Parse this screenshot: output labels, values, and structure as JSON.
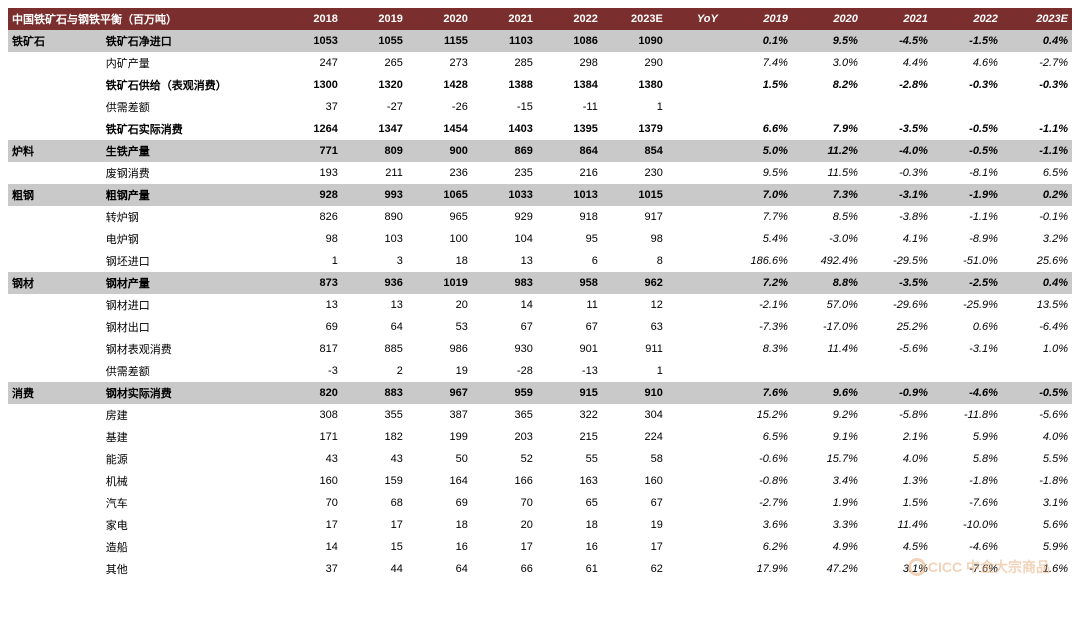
{
  "title": "中国铁矿石与钢铁平衡（百万吨）",
  "year_headers": [
    "2018",
    "2019",
    "2020",
    "2021",
    "2022",
    "2023E"
  ],
  "yoy_label": "YoY",
  "yoy_headers": [
    "2019",
    "2020",
    "2021",
    "2022",
    "2023E"
  ],
  "colors": {
    "header_bg": "#7a2e2e",
    "header_text": "#ffffff",
    "row_shade": "#c9c9c9",
    "row_plain": "#ffffff",
    "text": "#000000"
  },
  "font_sizes": {
    "body": 11,
    "header": 11
  },
  "watermark": {
    "text": "CICC 中金大宗商品",
    "color": "#e8b080"
  },
  "rows": [
    {
      "cat": "铁矿石",
      "label": "铁矿石净进口",
      "vals": [
        "1053",
        "1055",
        "1155",
        "1103",
        "1086",
        "1090"
      ],
      "yoy": [
        "0.1%",
        "9.5%",
        "-4.5%",
        "-1.5%",
        "0.4%"
      ],
      "bold": true,
      "shaded": true
    },
    {
      "cat": "",
      "label": "内矿产量",
      "vals": [
        "247",
        "265",
        "273",
        "285",
        "298",
        "290"
      ],
      "yoy": [
        "7.4%",
        "3.0%",
        "4.4%",
        "4.6%",
        "-2.7%"
      ],
      "bold": false,
      "shaded": false
    },
    {
      "cat": "",
      "label": "铁矿石供给（表观消费）",
      "vals": [
        "1300",
        "1320",
        "1428",
        "1388",
        "1384",
        "1380"
      ],
      "yoy": [
        "1.5%",
        "8.2%",
        "-2.8%",
        "-0.3%",
        "-0.3%"
      ],
      "bold": true,
      "shaded": false
    },
    {
      "cat": "",
      "label": "供需差额",
      "vals": [
        "37",
        "-27",
        "-26",
        "-15",
        "-11",
        "1"
      ],
      "yoy": [
        "",
        "",
        "",
        "",
        ""
      ],
      "bold": false,
      "shaded": false
    },
    {
      "cat": "",
      "label": "铁矿石实际消费",
      "vals": [
        "1264",
        "1347",
        "1454",
        "1403",
        "1395",
        "1379"
      ],
      "yoy": [
        "6.6%",
        "7.9%",
        "-3.5%",
        "-0.5%",
        "-1.1%"
      ],
      "bold": true,
      "shaded": false
    },
    {
      "cat": "炉料",
      "label": "生铁产量",
      "vals": [
        "771",
        "809",
        "900",
        "869",
        "864",
        "854"
      ],
      "yoy": [
        "5.0%",
        "11.2%",
        "-4.0%",
        "-0.5%",
        "-1.1%"
      ],
      "bold": true,
      "shaded": true
    },
    {
      "cat": "",
      "label": "废钢消费",
      "vals": [
        "193",
        "211",
        "236",
        "235",
        "216",
        "230"
      ],
      "yoy": [
        "9.5%",
        "11.5%",
        "-0.3%",
        "-8.1%",
        "6.5%"
      ],
      "bold": false,
      "shaded": false
    },
    {
      "cat": "粗钢",
      "label": "粗钢产量",
      "vals": [
        "928",
        "993",
        "1065",
        "1033",
        "1013",
        "1015"
      ],
      "yoy": [
        "7.0%",
        "7.3%",
        "-3.1%",
        "-1.9%",
        "0.2%"
      ],
      "bold": true,
      "shaded": true
    },
    {
      "cat": "",
      "label": "转炉钢",
      "vals": [
        "826",
        "890",
        "965",
        "929",
        "918",
        "917"
      ],
      "yoy": [
        "7.7%",
        "8.5%",
        "-3.8%",
        "-1.1%",
        "-0.1%"
      ],
      "bold": false,
      "shaded": false
    },
    {
      "cat": "",
      "label": "电炉钢",
      "vals": [
        "98",
        "103",
        "100",
        "104",
        "95",
        "98"
      ],
      "yoy": [
        "5.4%",
        "-3.0%",
        "4.1%",
        "-8.9%",
        "3.2%"
      ],
      "bold": false,
      "shaded": false
    },
    {
      "cat": "",
      "label": "钢坯进口",
      "vals": [
        "1",
        "3",
        "18",
        "13",
        "6",
        "8"
      ],
      "yoy": [
        "186.6%",
        "492.4%",
        "-29.5%",
        "-51.0%",
        "25.6%"
      ],
      "bold": false,
      "shaded": false
    },
    {
      "cat": "钢材",
      "label": "钢材产量",
      "vals": [
        "873",
        "936",
        "1019",
        "983",
        "958",
        "962"
      ],
      "yoy": [
        "7.2%",
        "8.8%",
        "-3.5%",
        "-2.5%",
        "0.4%"
      ],
      "bold": true,
      "shaded": true
    },
    {
      "cat": "",
      "label": "钢材进口",
      "vals": [
        "13",
        "13",
        "20",
        "14",
        "11",
        "12"
      ],
      "yoy": [
        "-2.1%",
        "57.0%",
        "-29.6%",
        "-25.9%",
        "13.5%"
      ],
      "bold": false,
      "shaded": false
    },
    {
      "cat": "",
      "label": "钢材出口",
      "vals": [
        "69",
        "64",
        "53",
        "67",
        "67",
        "63"
      ],
      "yoy": [
        "-7.3%",
        "-17.0%",
        "25.2%",
        "0.6%",
        "-6.4%"
      ],
      "bold": false,
      "shaded": false
    },
    {
      "cat": "",
      "label": "钢材表观消费",
      "vals": [
        "817",
        "885",
        "986",
        "930",
        "901",
        "911"
      ],
      "yoy": [
        "8.3%",
        "11.4%",
        "-5.6%",
        "-3.1%",
        "1.0%"
      ],
      "bold": false,
      "shaded": false
    },
    {
      "cat": "",
      "label": "供需差额",
      "vals": [
        "-3",
        "2",
        "19",
        "-28",
        "-13",
        "1"
      ],
      "yoy": [
        "",
        "",
        "",
        "",
        ""
      ],
      "bold": false,
      "shaded": false
    },
    {
      "cat": "消费",
      "label": "钢材实际消费",
      "vals": [
        "820",
        "883",
        "967",
        "959",
        "915",
        "910"
      ],
      "yoy": [
        "7.6%",
        "9.6%",
        "-0.9%",
        "-4.6%",
        "-0.5%"
      ],
      "bold": true,
      "shaded": true
    },
    {
      "cat": "",
      "label": "房建",
      "vals": [
        "308",
        "355",
        "387",
        "365",
        "322",
        "304"
      ],
      "yoy": [
        "15.2%",
        "9.2%",
        "-5.8%",
        "-11.8%",
        "-5.6%"
      ],
      "bold": false,
      "shaded": false
    },
    {
      "cat": "",
      "label": "基建",
      "vals": [
        "171",
        "182",
        "199",
        "203",
        "215",
        "224"
      ],
      "yoy": [
        "6.5%",
        "9.1%",
        "2.1%",
        "5.9%",
        "4.0%"
      ],
      "bold": false,
      "shaded": false
    },
    {
      "cat": "",
      "label": "能源",
      "vals": [
        "43",
        "43",
        "50",
        "52",
        "55",
        "58"
      ],
      "yoy": [
        "-0.6%",
        "15.7%",
        "4.0%",
        "5.8%",
        "5.5%"
      ],
      "bold": false,
      "shaded": false
    },
    {
      "cat": "",
      "label": "机械",
      "vals": [
        "160",
        "159",
        "164",
        "166",
        "163",
        "160"
      ],
      "yoy": [
        "-0.8%",
        "3.4%",
        "1.3%",
        "-1.8%",
        "-1.8%"
      ],
      "bold": false,
      "shaded": false
    },
    {
      "cat": "",
      "label": "汽车",
      "vals": [
        "70",
        "68",
        "69",
        "70",
        "65",
        "67"
      ],
      "yoy": [
        "-2.7%",
        "1.9%",
        "1.5%",
        "-7.6%",
        "3.1%"
      ],
      "bold": false,
      "shaded": false
    },
    {
      "cat": "",
      "label": "家电",
      "vals": [
        "17",
        "17",
        "18",
        "20",
        "18",
        "19"
      ],
      "yoy": [
        "3.6%",
        "3.3%",
        "11.4%",
        "-10.0%",
        "5.6%"
      ],
      "bold": false,
      "shaded": false
    },
    {
      "cat": "",
      "label": "造船",
      "vals": [
        "14",
        "15",
        "16",
        "17",
        "16",
        "17"
      ],
      "yoy": [
        "6.2%",
        "4.9%",
        "4.5%",
        "-4.6%",
        "5.9%"
      ],
      "bold": false,
      "shaded": false
    },
    {
      "cat": "",
      "label": "其他",
      "vals": [
        "37",
        "44",
        "64",
        "66",
        "61",
        "62"
      ],
      "yoy": [
        "17.9%",
        "47.2%",
        "3.1%",
        "-7.6%",
        "1.6%"
      ],
      "bold": false,
      "shaded": false
    }
  ]
}
